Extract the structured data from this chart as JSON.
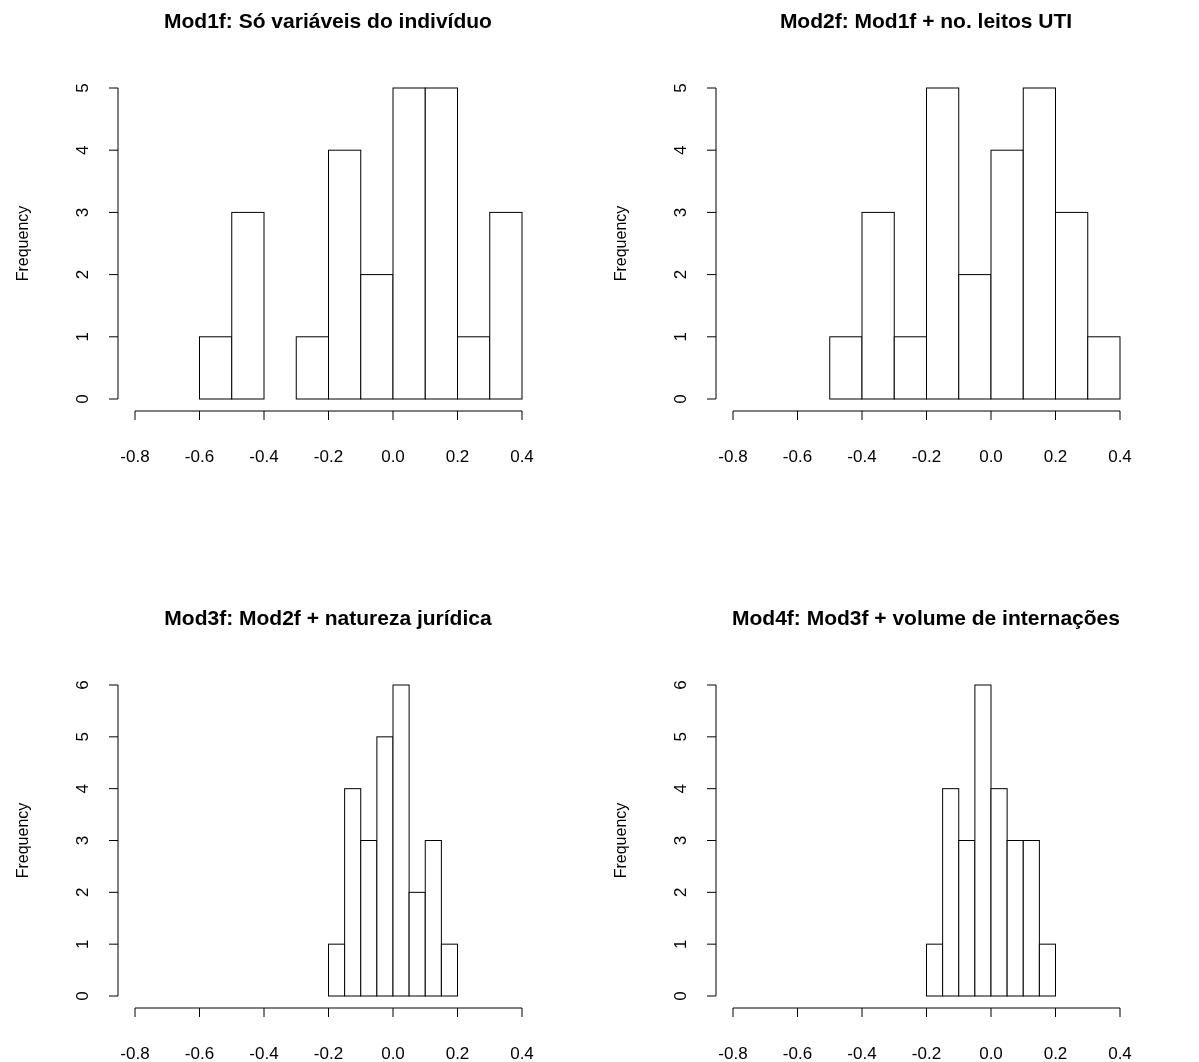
{
  "chart_data": [
    {
      "type": "histogram",
      "title": "Mod1f: Só variáveis do indivíduo",
      "ylabel": "Frequency",
      "bins": [
        -0.6,
        -0.5,
        -0.4,
        -0.3,
        -0.2,
        -0.1,
        0.0,
        0.1,
        0.2,
        0.3,
        0.4
      ],
      "values": [
        1,
        3,
        0,
        1,
        4,
        2,
        5,
        5,
        1,
        3
      ],
      "color": "#ffffff",
      "xlim": [
        -0.8,
        0.4
      ],
      "xticks": [
        {
          "value": -0.8,
          "label": "-0.8"
        },
        {
          "value": -0.6,
          "label": "-0.6"
        },
        {
          "value": -0.4,
          "label": "-0.4"
        },
        {
          "value": -0.2,
          "label": "-0.2"
        },
        {
          "value": 0,
          "label": "0.0"
        },
        {
          "value": 0.2,
          "label": "0.2"
        },
        {
          "value": 0.4,
          "label": "0.4"
        }
      ],
      "ylim": [
        0,
        5
      ],
      "yticks": [
        0,
        1,
        2,
        3,
        4,
        5
      ],
      "grid": false
    },
    {
      "type": "histogram",
      "title": "Mod2f: Mod1f + no. leitos UTI",
      "ylabel": "Frequency",
      "bins": [
        -0.5,
        -0.4,
        -0.3,
        -0.2,
        -0.1,
        0.0,
        0.1,
        0.2,
        0.3,
        0.4
      ],
      "values": [
        1,
        3,
        1,
        5,
        2,
        4,
        5,
        3,
        1
      ],
      "color": "#ffffff",
      "xlim": [
        -0.8,
        0.4
      ],
      "xticks": [
        {
          "value": -0.8,
          "label": "-0.8"
        },
        {
          "value": -0.6,
          "label": "-0.6"
        },
        {
          "value": -0.4,
          "label": "-0.4"
        },
        {
          "value": -0.2,
          "label": "-0.2"
        },
        {
          "value": 0,
          "label": "0.0"
        },
        {
          "value": 0.2,
          "label": "0.2"
        },
        {
          "value": 0.4,
          "label": "0.4"
        }
      ],
      "ylim": [
        0,
        5
      ],
      "yticks": [
        0,
        1,
        2,
        3,
        4,
        5
      ],
      "grid": false
    },
    {
      "type": "histogram",
      "title": "Mod3f: Mod2f + natureza jurídica",
      "ylabel": "Frequency",
      "bins": [
        -0.2,
        -0.15,
        -0.1,
        -0.05,
        0.0,
        0.05,
        0.1,
        0.15,
        0.2
      ],
      "values": [
        1,
        4,
        3,
        5,
        6,
        2,
        3,
        1
      ],
      "color": "#ffffff",
      "xlim": [
        -0.8,
        0.4
      ],
      "xticks": [
        {
          "value": -0.8,
          "label": "-0.8"
        },
        {
          "value": -0.6,
          "label": "-0.6"
        },
        {
          "value": -0.4,
          "label": "-0.4"
        },
        {
          "value": -0.2,
          "label": "-0.2"
        },
        {
          "value": 0,
          "label": "0.0"
        },
        {
          "value": 0.2,
          "label": "0.2"
        },
        {
          "value": 0.4,
          "label": "0.4"
        }
      ],
      "ylim": [
        0,
        6
      ],
      "yticks": [
        0,
        1,
        2,
        3,
        4,
        5,
        6
      ],
      "grid": false
    },
    {
      "type": "histogram",
      "title": "Mod4f: Mod3f + volume de internações",
      "ylabel": "Frequency",
      "bins": [
        -0.2,
        -0.15,
        -0.1,
        -0.05,
        0.0,
        0.05,
        0.1,
        0.15,
        0.2
      ],
      "values": [
        1,
        4,
        3,
        6,
        4,
        3,
        3,
        1
      ],
      "color": "#ffffff",
      "xlim": [
        -0.8,
        0.4
      ],
      "xticks": [
        {
          "value": -0.8,
          "label": "-0.8"
        },
        {
          "value": -0.6,
          "label": "-0.6"
        },
        {
          "value": -0.4,
          "label": "-0.4"
        },
        {
          "value": -0.2,
          "label": "-0.2"
        },
        {
          "value": 0,
          "label": "0.0"
        },
        {
          "value": 0.2,
          "label": "0.2"
        },
        {
          "value": 0.4,
          "label": "0.4"
        }
      ],
      "ylim": [
        0,
        6
      ],
      "yticks": [
        0,
        1,
        2,
        3,
        4,
        5,
        6
      ],
      "grid": false
    }
  ]
}
